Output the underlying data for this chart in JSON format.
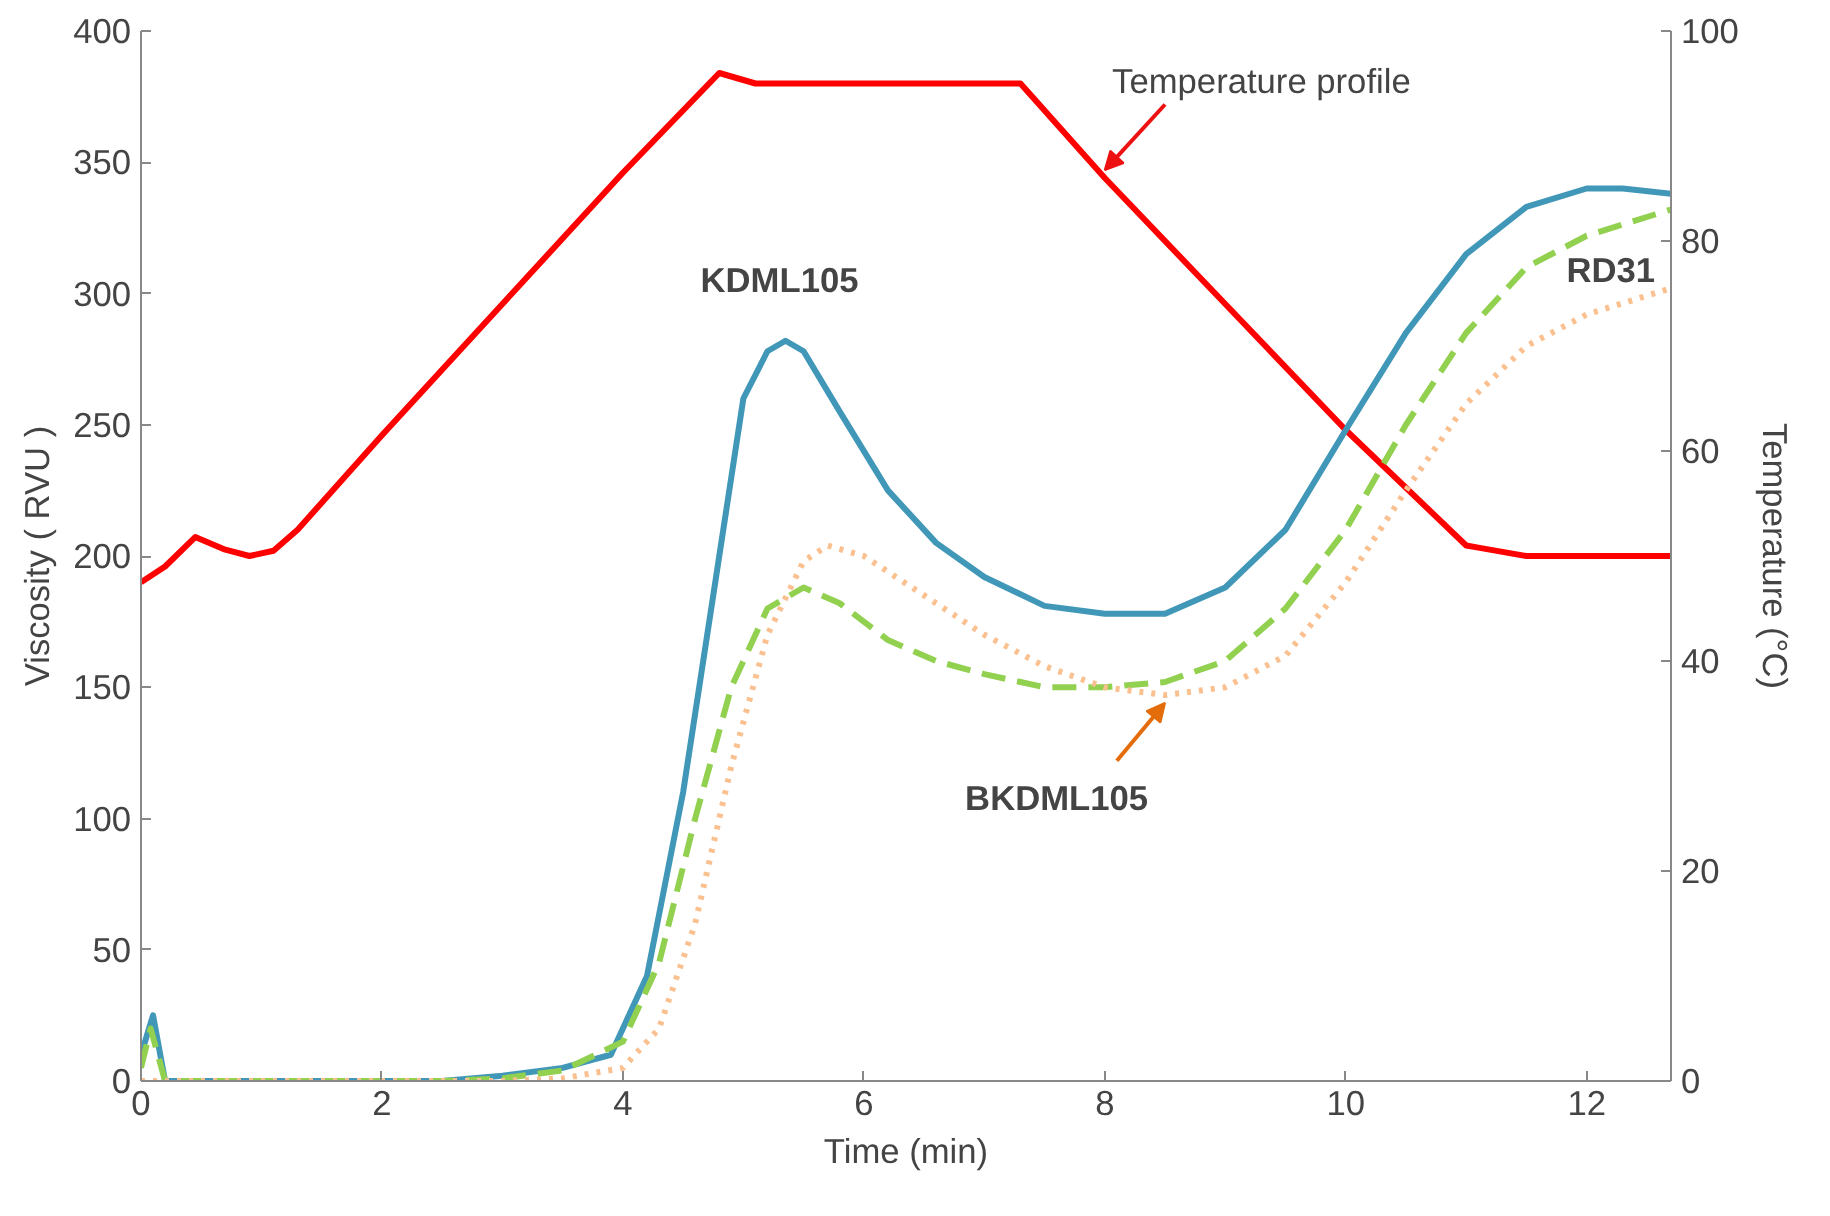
{
  "chart_data": {
    "type": "line",
    "xlabel": "Time (min)",
    "ylabel": "Viscosity ( RVU )",
    "y2label": "Temperature (°C)",
    "xlim": [
      0,
      12.7
    ],
    "xticks": [
      0,
      2,
      4,
      6,
      8,
      10,
      12
    ],
    "ylim": [
      0,
      400
    ],
    "yticks": [
      0,
      50,
      100,
      150,
      200,
      250,
      300,
      350,
      400
    ],
    "y2lim": [
      0,
      100
    ],
    "y2ticks": [
      0,
      20,
      40,
      60,
      80,
      100
    ],
    "grid": false,
    "legend": false,
    "series": [
      {
        "name": "Temperature profile",
        "color": "#ff0000",
        "axis": "y2",
        "line_style": "solid",
        "x": [
          0,
          0.2,
          0.45,
          0.7,
          0.9,
          1.1,
          1.3,
          2,
          3,
          4,
          4.8,
          5.1,
          6,
          7.3,
          8,
          9,
          10,
          11,
          11.1,
          11.5,
          12.7
        ],
        "values": [
          47.5,
          49,
          51.8,
          50.6,
          50,
          50.5,
          52.5,
          61.5,
          74,
          86.5,
          96,
          95,
          95,
          95,
          86,
          74,
          62,
          51,
          50.8,
          50,
          50
        ]
      },
      {
        "name": "KDML105",
        "color": "#4197b8",
        "line_style": "solid",
        "x": [
          0,
          0.1,
          0.2,
          1,
          2,
          2.5,
          3,
          3.5,
          3.9,
          4.2,
          4.5,
          4.8,
          5,
          5.2,
          5.35,
          5.5,
          5.8,
          6.2,
          6.6,
          7,
          7.5,
          8,
          8.5,
          9,
          9.5,
          10,
          10.5,
          11,
          11.5,
          12,
          12.3,
          12.7
        ],
        "values": [
          10,
          25,
          0,
          0,
          0,
          0,
          2,
          5,
          10,
          40,
          110,
          200,
          260,
          278,
          282,
          278,
          255,
          225,
          205,
          192,
          181,
          178,
          178,
          188,
          210,
          248,
          285,
          315,
          333,
          340,
          340,
          338
        ]
      },
      {
        "name": "RD31",
        "color": "#92d050",
        "line_style": "dashed",
        "x": [
          0,
          0.08,
          0.2,
          1,
          2,
          2.5,
          3,
          3.5,
          4,
          4.3,
          4.6,
          4.9,
          5.2,
          5.5,
          5.8,
          6.2,
          6.6,
          7,
          7.5,
          8,
          8.5,
          9,
          9.5,
          10,
          10.5,
          11,
          11.5,
          12,
          12.7
        ],
        "values": [
          5,
          20,
          0,
          0,
          0,
          0,
          1,
          4,
          15,
          45,
          100,
          150,
          180,
          188,
          182,
          168,
          160,
          155,
          150,
          150,
          152,
          160,
          180,
          210,
          250,
          285,
          310,
          322,
          332
        ]
      },
      {
        "name": "BKDML105",
        "color": "#fac090",
        "line_style": "dotted",
        "x": [
          0,
          1,
          2,
          3,
          3.5,
          4,
          4.3,
          4.6,
          4.9,
          5.2,
          5.5,
          5.7,
          6,
          6.5,
          7,
          7.5,
          8,
          8.5,
          9,
          9.5,
          10,
          10.5,
          11,
          11.5,
          12,
          12.7
        ],
        "values": [
          0,
          0,
          0,
          0,
          1,
          5,
          20,
          60,
          120,
          170,
          198,
          204,
          200,
          185,
          170,
          158,
          150,
          147,
          150,
          162,
          190,
          225,
          258,
          280,
          292,
          302
        ]
      }
    ]
  }
}
